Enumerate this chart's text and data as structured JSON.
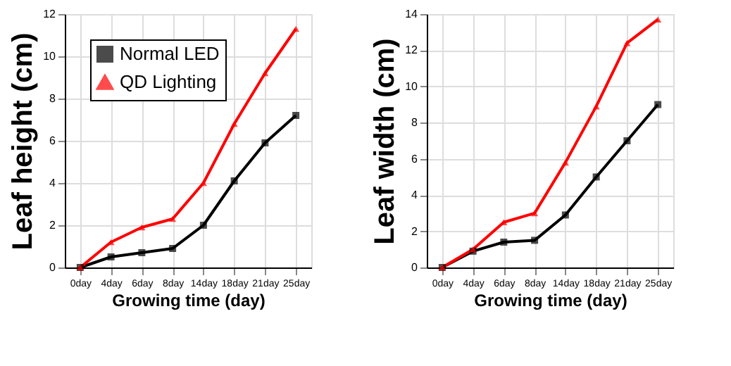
{
  "chart_data": [
    {
      "type": "line",
      "xlabel": "Growing time (day)",
      "ylabel": "Leaf height (cm)",
      "categories": [
        "0day",
        "4day",
        "6day",
        "8day",
        "14day",
        "18day",
        "21day",
        "25day"
      ],
      "series": [
        {
          "name": "Normal LED",
          "color": "#000000",
          "marker": "square",
          "values": [
            0,
            0.5,
            0.7,
            0.9,
            2.0,
            4.1,
            5.9,
            7.2
          ]
        },
        {
          "name": "QD Lighting",
          "color": "#ff0000",
          "marker": "triangle",
          "values": [
            0,
            1.2,
            1.9,
            2.3,
            4.0,
            6.8,
            9.2,
            11.3
          ]
        }
      ],
      "ylim": [
        0,
        12
      ],
      "yticks": [
        0,
        2,
        4,
        6,
        8,
        10,
        12
      ],
      "grid": true,
      "legend": "top left"
    },
    {
      "type": "line",
      "xlabel": "Growing time (day)",
      "ylabel": "Leaf width (cm)",
      "categories": [
        "0day",
        "4day",
        "6day",
        "8day",
        "14day",
        "18day",
        "21day",
        "25day"
      ],
      "series": [
        {
          "name": "Normal LED",
          "color": "#000000",
          "marker": "square",
          "values": [
            0,
            0.9,
            1.4,
            1.5,
            2.9,
            5.0,
            7.0,
            9.0
          ]
        },
        {
          "name": "QD Lighting",
          "color": "#ff0000",
          "marker": "triangle",
          "values": [
            0,
            1.0,
            2.5,
            3.0,
            5.8,
            8.9,
            12.4,
            13.7
          ]
        }
      ],
      "ylim": [
        0,
        14
      ],
      "yticks": [
        0,
        2,
        4,
        6,
        8,
        10,
        12,
        14
      ],
      "grid": true,
      "legend": "top left"
    }
  ]
}
